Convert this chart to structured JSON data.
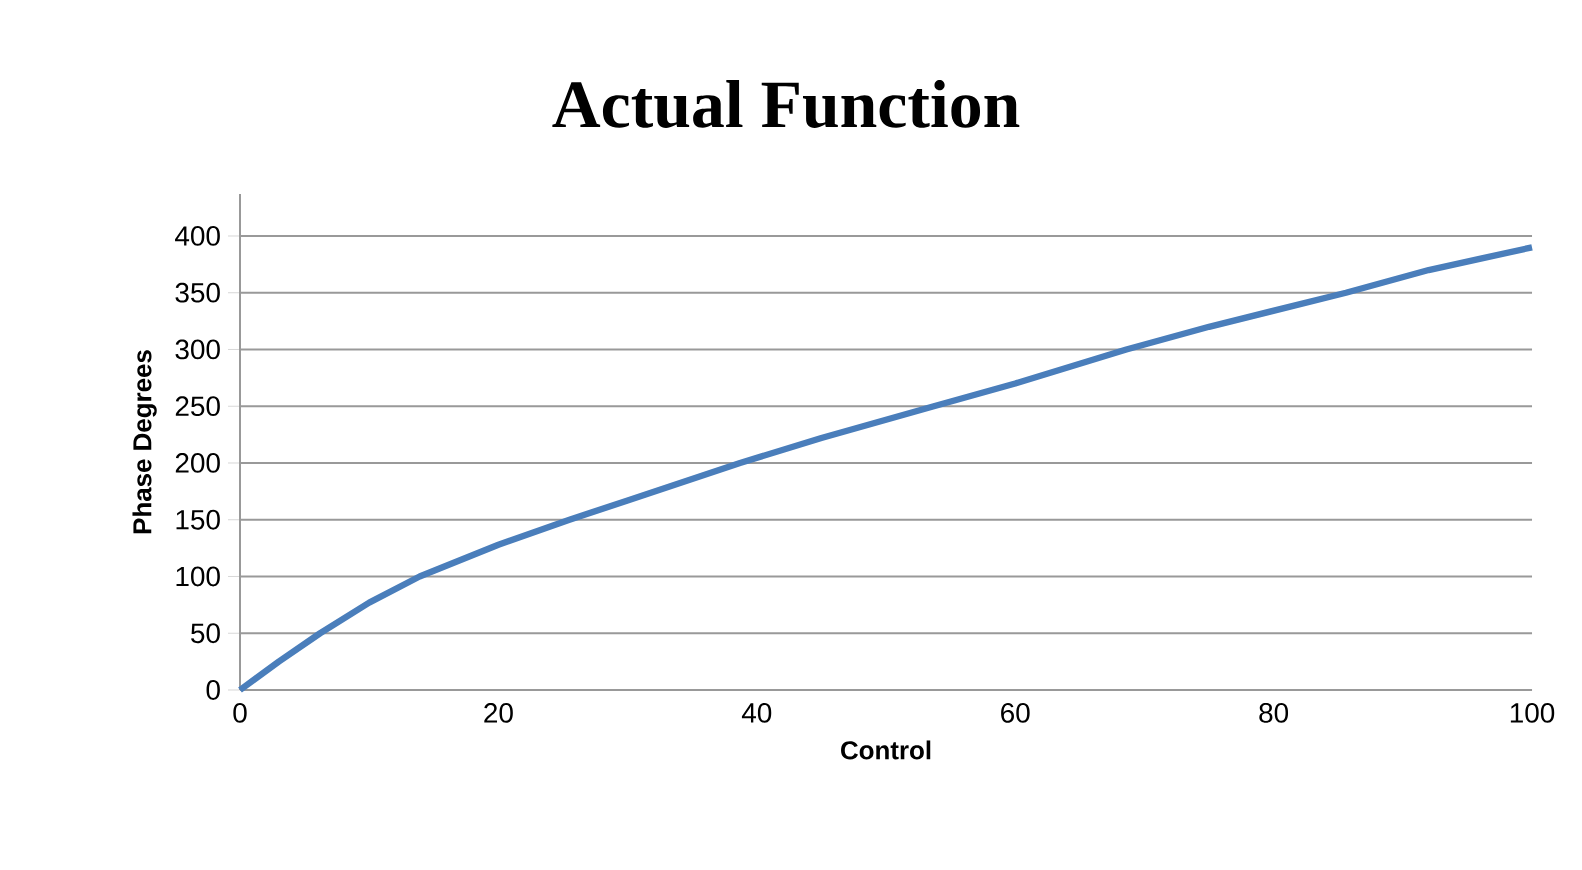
{
  "chart_data": {
    "type": "line",
    "title": "Actual Function",
    "xlabel": "Control",
    "ylabel": "Phase Degrees",
    "x": [
      0,
      3,
      6.2,
      10,
      13.9,
      20,
      25.5,
      30,
      38.7,
      45,
      53.7,
      60,
      68.6,
      75,
      85.6,
      92,
      100
    ],
    "series": [
      {
        "color": "#4a7ebb",
        "values": [
          0,
          25,
          50,
          77,
          100,
          128,
          150,
          167,
          200,
          222,
          250,
          270,
          300,
          320,
          350,
          370,
          390
        ]
      }
    ],
    "xlim": [
      0,
      100
    ],
    "ylim": [
      0,
      437
    ],
    "xticks": [
      0,
      20,
      40,
      60,
      80,
      100
    ],
    "yticks": [
      0,
      50,
      100,
      150,
      200,
      250,
      300,
      350,
      400
    ],
    "grid": "y",
    "marker": "none",
    "line_style": "solid"
  }
}
